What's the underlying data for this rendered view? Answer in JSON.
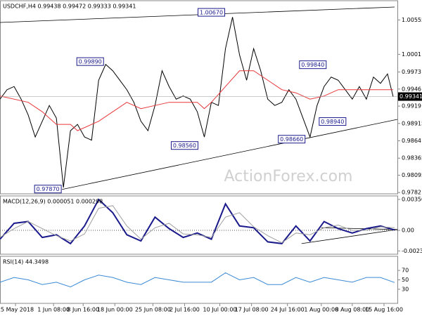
{
  "chart_data": [
    {
      "type": "line",
      "title": "USDCHF,H4  0.99438 0.99472 0.99333 0.99341",
      "watermark": "ActionForex.com",
      "xlim": [
        0,
        141
      ],
      "ylim": [
        0.978,
        1.0086
      ],
      "yticks": [
        1.00555,
        1.0001,
        0.9973,
        0.9946,
        0.9919,
        0.98915,
        0.9864,
        0.98365,
        0.98095,
        0.9782
      ],
      "series": [
        {
          "name": "USDCHF",
          "color": "#000000",
          "width": 1,
          "x": [
            0,
            2.5,
            5,
            7.5,
            10,
            12.5,
            15,
            17.5,
            20,
            22.5,
            25,
            27.5,
            30,
            32.5,
            35,
            37.5,
            40,
            42.5,
            45,
            47.5,
            50,
            52.5,
            55,
            57.5,
            60,
            62.5,
            65,
            67.5,
            70,
            72.5,
            75,
            77.5,
            80,
            82.5,
            85,
            87.5,
            90,
            92.5,
            95,
            97.5,
            100,
            102.5,
            105,
            107.5,
            110,
            112.5,
            115,
            117.5,
            120,
            122.5,
            125,
            127.5,
            130,
            132.5,
            135,
            137.5,
            139.5
          ],
          "values": [
            0.993,
            0.9945,
            0.995,
            0.993,
            0.9905,
            0.987,
            0.9895,
            0.992,
            0.99,
            0.979,
            0.988,
            0.989,
            0.987,
            0.9865,
            0.996,
            0.9985,
            0.9975,
            0.996,
            0.9945,
            0.9925,
            0.9895,
            0.988,
            0.992,
            0.9975,
            0.995,
            0.993,
            0.9935,
            0.993,
            0.991,
            0.987,
            0.9925,
            0.992,
            1.001,
            1.006,
            1.0,
            0.996,
            1.001,
            0.9975,
            0.993,
            0.992,
            0.9925,
            0.9945,
            0.993,
            0.99,
            0.987,
            0.992,
            0.995,
            0.9965,
            0.996,
            0.9945,
            0.993,
            0.995,
            0.993,
            0.9965,
            0.9955,
            0.997,
            0.9934
          ]
        },
        {
          "name": "MA",
          "color": "#e8373b",
          "width": 1,
          "x": [
            0,
            10,
            15,
            20,
            25,
            27.5,
            35,
            40,
            45,
            50,
            55,
            60,
            65,
            70,
            72.5,
            75,
            80,
            85,
            90,
            95,
            100,
            105,
            110,
            115,
            120,
            125,
            130,
            135,
            139.5
          ],
          "values": [
            0.9935,
            0.9925,
            0.991,
            0.989,
            0.989,
            0.988,
            0.9895,
            0.991,
            0.9925,
            0.9915,
            0.992,
            0.9925,
            0.9925,
            0.9925,
            0.9915,
            0.9925,
            0.995,
            0.9975,
            0.9975,
            0.996,
            0.9945,
            0.994,
            0.993,
            0.9935,
            0.9945,
            0.9945,
            0.9945,
            0.9945,
            0.9945
          ]
        }
      ],
      "trendlines": [
        {
          "x": [
            0,
            140
          ],
          "values": [
            1.00515,
            1.0076
          ]
        },
        {
          "x": [
            22,
            141
          ],
          "values": [
            0.9787,
            0.9898
          ]
        }
      ],
      "annotations": [
        {
          "text": "1.00670",
          "x": 75,
          "y": 1.0067
        },
        {
          "text": "0.99890",
          "x": 32,
          "y": 0.9989
        },
        {
          "text": "0.98560",
          "x": 65.5,
          "y": 0.9856
        },
        {
          "text": "0.97870",
          "x": 17,
          "y": 0.9787
        },
        {
          "text": "0.99840",
          "x": 111,
          "y": 0.9984
        },
        {
          "text": "0.98940",
          "x": 118,
          "y": 0.9894
        },
        {
          "text": "0.98660",
          "x": 103.5,
          "y": 0.9866
        }
      ],
      "last_price": {
        "text": "0.99341",
        "y": 0.99341
      }
    },
    {
      "type": "line",
      "title": "MACD(12,26,9) 0.000051 0.000298",
      "xlim": [
        0,
        141
      ],
      "ylim": [
        -0.0027,
        0.0039
      ],
      "yticks": [
        0.003505,
        {
          "value": 0,
          "label": "0.00"
        },
        -0.002328
      ],
      "series": [
        {
          "name": "MACD",
          "color": "#1a1a8c",
          "width": 2,
          "x": [
            0,
            5,
            10,
            15,
            20,
            25,
            30,
            35,
            40,
            45,
            50,
            55,
            60,
            65,
            70,
            75,
            80,
            85,
            90,
            95,
            100,
            105,
            110,
            115,
            120,
            125,
            130,
            135,
            140
          ],
          "values": [
            -0.001,
            0.0008,
            0.001,
            -0.0008,
            -0.0005,
            -0.0015,
            0.0005,
            0.0035,
            0.002,
            -0.0005,
            -0.0012,
            0.0015,
            0.0002,
            -0.0008,
            -0.0003,
            -0.001,
            0.003,
            0.0005,
            0.0003,
            -0.0013,
            -0.0015,
            0.0005,
            -0.0012,
            0.001,
            0.0002,
            -0.0003,
            0.0002,
            0.0005,
            5e-05
          ]
        },
        {
          "name": "Signal",
          "color": "#a0a0a0",
          "width": 1,
          "x": [
            0,
            5,
            10,
            15,
            20,
            25,
            30,
            35,
            40,
            45,
            50,
            55,
            60,
            65,
            70,
            75,
            80,
            85,
            90,
            95,
            100,
            105,
            110,
            115,
            120,
            125,
            130,
            135,
            140
          ],
          "values": [
            -0.0008,
            0.0002,
            0.001,
            0.0002,
            -0.0006,
            -0.0012,
            -0.0004,
            0.0025,
            0.0028,
            0.0005,
            -0.001,
            0.0003,
            0.0008,
            -0.0004,
            -0.0005,
            -0.0008,
            0.0015,
            0.002,
            0.0004,
            -0.0006,
            -0.0014,
            -0.0003,
            -0.0005,
            0.0003,
            0.0006,
            0,
            0,
            0.0004,
            0.0003
          ]
        }
      ],
      "trendlines": [
        {
          "x": [
            114,
            141
          ],
          "values": [
            0.0003,
            0.0001
          ]
        },
        {
          "x": [
            107,
            141
          ],
          "values": [
            -0.0015,
            0.0001
          ]
        }
      ]
    },
    {
      "type": "line",
      "title": "RSI(14) 44.3498",
      "xlim": [
        0,
        141
      ],
      "ylim": [
        0,
        100
      ],
      "yticks": [
        70,
        50,
        30
      ],
      "xticks": [
        {
          "value": 5.5,
          "label": "25 May 2018"
        },
        {
          "value": 19,
          "label": "1 Jun 08:00"
        },
        {
          "value": 29.5,
          "label": "8 Jun 16:00"
        },
        {
          "value": 40.75,
          "label": "18 Jun 00:00"
        },
        {
          "value": 54.25,
          "label": "25 Jun 08:00"
        },
        {
          "value": 65.5,
          "label": "2 Jul 16:00"
        },
        {
          "value": 78,
          "label": "10 Jul 00:00"
        },
        {
          "value": 89.25,
          "label": "17 Jul 08:00"
        },
        {
          "value": 102,
          "label": "24 Jul 16:00"
        },
        {
          "value": 114,
          "label": "1 Aug 00:00"
        },
        {
          "value": 125,
          "label": "8 Aug 08:00"
        },
        {
          "value": 136.25,
          "label": "15 Aug 16:00"
        }
      ],
      "series": [
        {
          "name": "RSI",
          "color": "#3a8ad6",
          "width": 1,
          "x": [
            0,
            5,
            10,
            15,
            20,
            25,
            30,
            35,
            40,
            45,
            50,
            55,
            60,
            65,
            70,
            75,
            80,
            85,
            90,
            95,
            100,
            105,
            110,
            115,
            120,
            125,
            130,
            135,
            140
          ],
          "values": [
            45,
            55,
            50,
            40,
            45,
            35,
            50,
            60,
            55,
            45,
            40,
            55,
            50,
            45,
            45,
            45,
            65,
            50,
            55,
            40,
            40,
            55,
            45,
            55,
            50,
            45,
            55,
            55,
            44.3498
          ]
        }
      ]
    }
  ]
}
